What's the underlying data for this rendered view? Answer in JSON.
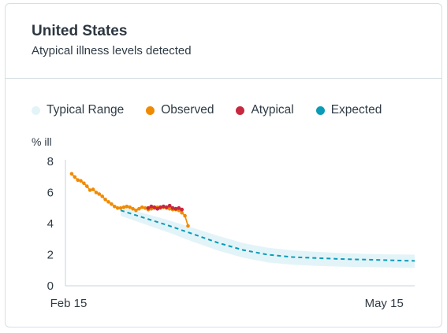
{
  "header": {
    "title": "United States",
    "subtitle": "Atypical illness levels detected"
  },
  "legend": [
    {
      "label": "Typical Range",
      "color": "#e3f4f9"
    },
    {
      "label": "Observed",
      "color": "#f08a00"
    },
    {
      "label": "Atypical",
      "color": "#c8283f"
    },
    {
      "label": "Expected",
      "color": "#0a9bb8"
    }
  ],
  "chart_data": {
    "type": "line",
    "title": "United States",
    "subtitle": "Atypical illness levels detected",
    "ylabel": "% ill",
    "xlabel": "",
    "ylim": [
      0,
      8
    ],
    "yticks": [
      "0",
      "2",
      "4",
      "6",
      "8"
    ],
    "xlim": [
      0,
      113
    ],
    "xticks": [
      {
        "x": 0,
        "label": "Feb 15"
      },
      {
        "x": 103,
        "label": "May 15"
      }
    ],
    "grid": false,
    "legend_position": "top",
    "series": [
      {
        "name": "Typical Range",
        "kind": "band",
        "x": [
          17,
          25,
          33,
          41,
          49,
          57,
          65,
          73,
          81,
          89,
          97,
          105,
          113
        ],
        "lower": [
          4.5,
          3.95,
          3.4,
          2.8,
          2.25,
          1.8,
          1.5,
          1.35,
          1.28,
          1.23,
          1.2,
          1.18,
          1.15
        ],
        "upper": [
          5.1,
          4.65,
          4.2,
          3.7,
          3.2,
          2.75,
          2.45,
          2.28,
          2.18,
          2.1,
          2.05,
          2.02,
          2.0
        ]
      },
      {
        "name": "Expected",
        "kind": "dashed-line",
        "x": [
          17,
          25,
          33,
          41,
          49,
          57,
          65,
          73,
          81,
          89,
          97,
          105,
          113
        ],
        "y": [
          4.85,
          4.35,
          3.85,
          3.3,
          2.75,
          2.3,
          2.0,
          1.85,
          1.78,
          1.72,
          1.68,
          1.64,
          1.6
        ]
      },
      {
        "name": "Observed",
        "kind": "line-points",
        "x": [
          1,
          2,
          3,
          4,
          5,
          6,
          7,
          8,
          9,
          10,
          11,
          12,
          13,
          14,
          15,
          16,
          17,
          18,
          19,
          20,
          21,
          22,
          23,
          24,
          25,
          26,
          27,
          28,
          29,
          30,
          31,
          32,
          33,
          34,
          35,
          36,
          37,
          38,
          39
        ],
        "y": [
          7.2,
          7.0,
          6.8,
          6.75,
          6.6,
          6.4,
          6.15,
          6.2,
          6.0,
          5.9,
          5.75,
          5.55,
          5.4,
          5.25,
          5.1,
          5.0,
          5.0,
          5.05,
          5.1,
          5.05,
          4.95,
          4.85,
          4.95,
          5.05,
          5.0,
          4.9,
          4.95,
          5.0,
          5.05,
          5.0,
          5.05,
          5.0,
          4.95,
          4.9,
          4.9,
          4.85,
          4.7,
          4.5,
          3.85
        ]
      },
      {
        "name": "Atypical",
        "kind": "line-points",
        "x": [
          26,
          27,
          28,
          29,
          30,
          31,
          32,
          33,
          34,
          35,
          36,
          37
        ],
        "y": [
          5.0,
          5.1,
          5.05,
          4.95,
          5.05,
          5.1,
          5.05,
          5.15,
          5.0,
          4.95,
          5.0,
          4.9
        ]
      }
    ]
  }
}
